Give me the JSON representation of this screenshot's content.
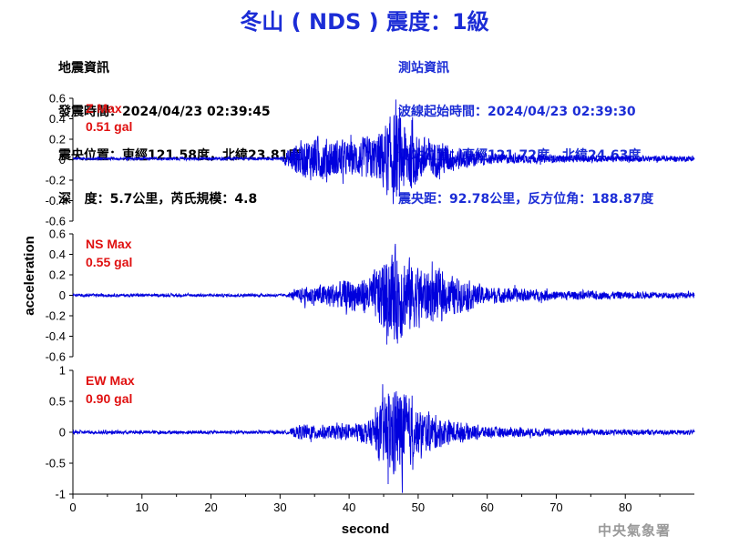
{
  "title": "冬山 ( NDS ) 震度：1級",
  "quake_info": {
    "heading": "地震資訊",
    "origin_time": "發震時間：2024/04/23 02:39:45",
    "epicenter": "震央位置：東經121.58度，北緯23.81度",
    "depth_magnitude": "深   度：5.7公里，芮氏規模：4.8"
  },
  "station_info": {
    "heading": "測站資訊",
    "arrival_time": "波線起始時間：2024/04/23 02:39:30",
    "location": "測站位置：東經121.72度，北緯24.63度",
    "distance_azimuth": "震央距：92.78公里，反方位角：188.87度"
  },
  "footer": "中央氣象署",
  "chart_data": {
    "type": "line",
    "xlabel": "second",
    "ylabel": "acceleration",
    "x_range": [
      0,
      90
    ],
    "x_ticks": [
      "0",
      "10",
      "20",
      "30",
      "40",
      "50",
      "60",
      "70",
      "80"
    ],
    "line_color": "#0000dd",
    "label_color": "#e01010",
    "series": [
      {
        "name": "Z Max",
        "max_label": "0.51 gal",
        "peak": 0.51,
        "ylim": [
          -0.6,
          0.6
        ],
        "y_ticks": [
          "0.6",
          "0.4",
          "0.2",
          "0",
          "-0.2",
          "-0.4",
          "-0.6"
        ],
        "noise": 0.015,
        "offset": 0.01,
        "envelope": [
          [
            0,
            0.015
          ],
          [
            30,
            0.015
          ],
          [
            32,
            0.16
          ],
          [
            35,
            0.24
          ],
          [
            40,
            0.18
          ],
          [
            44,
            0.26
          ],
          [
            46.5,
            0.5
          ],
          [
            50,
            0.26
          ],
          [
            55,
            0.14
          ],
          [
            60,
            0.06
          ],
          [
            70,
            0.04
          ],
          [
            90,
            0.03
          ]
        ]
      },
      {
        "name": "NS Max",
        "max_label": "0.55 gal",
        "peak": 0.55,
        "ylim": [
          -0.6,
          0.6
        ],
        "y_ticks": [
          "0.6",
          "0.4",
          "0.2",
          "0",
          "-0.2",
          "-0.4",
          "-0.6"
        ],
        "noise": 0.015,
        "offset": 0.0,
        "envelope": [
          [
            0,
            0.015
          ],
          [
            31,
            0.015
          ],
          [
            33,
            0.08
          ],
          [
            38,
            0.14
          ],
          [
            43,
            0.2
          ],
          [
            46.5,
            0.52
          ],
          [
            50,
            0.32
          ],
          [
            55,
            0.2
          ],
          [
            60,
            0.09
          ],
          [
            70,
            0.05
          ],
          [
            90,
            0.03
          ]
        ]
      },
      {
        "name": "EW Max",
        "max_label": "0.90 gal",
        "peak": 0.9,
        "ylim": [
          -1,
          1
        ],
        "y_ticks": [
          "1",
          "0.5",
          "0",
          "-0.5",
          "-1"
        ],
        "noise": 0.03,
        "offset": 0.0,
        "envelope": [
          [
            0,
            0.03
          ],
          [
            31,
            0.03
          ],
          [
            33,
            0.14
          ],
          [
            38,
            0.12
          ],
          [
            43,
            0.2
          ],
          [
            45.5,
            0.7
          ],
          [
            47,
            0.85
          ],
          [
            50,
            0.4
          ],
          [
            55,
            0.2
          ],
          [
            60,
            0.1
          ],
          [
            70,
            0.06
          ],
          [
            90,
            0.04
          ]
        ]
      }
    ]
  }
}
